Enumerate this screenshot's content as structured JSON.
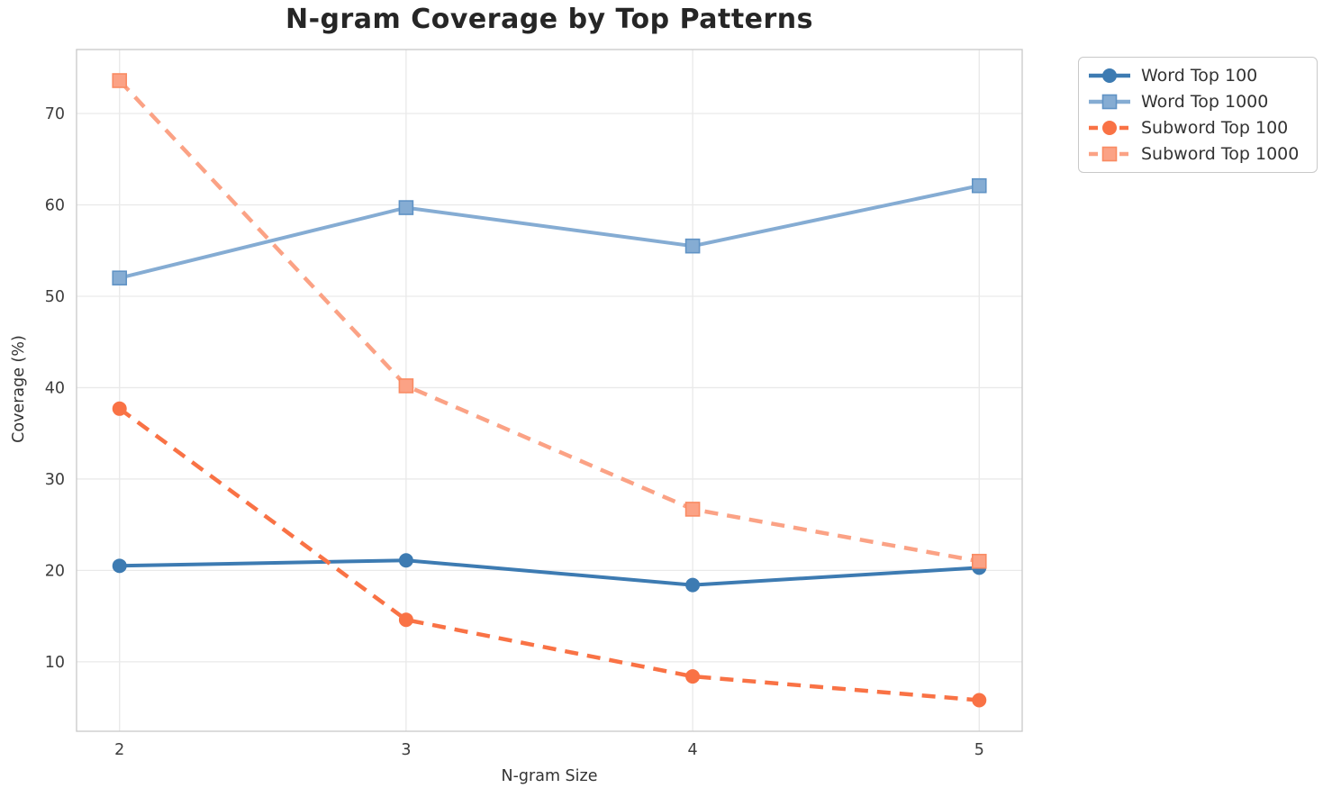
{
  "chart_data": {
    "type": "line",
    "title": "N-gram Coverage by Top Patterns",
    "xlabel": "N-gram Size",
    "ylabel": "Coverage (%)",
    "x": [
      2,
      3,
      4,
      5
    ],
    "xtick_labels": [
      "2",
      "3",
      "4",
      "5"
    ],
    "yticks": [
      10,
      20,
      30,
      40,
      50,
      60,
      70
    ],
    "xlim": [
      1.85,
      5.15
    ],
    "ylim": [
      2.4,
      77.0
    ],
    "grid": true,
    "legend_position": "outside-top-right",
    "series": [
      {
        "name": "Word Top 100",
        "values": [
          20.5,
          21.1,
          18.4,
          20.3
        ],
        "color": "#3D7BB2",
        "edge": "#3D7BB2",
        "marker": "circle",
        "line": "solid"
      },
      {
        "name": "Word Top 1000",
        "values": [
          52.0,
          59.7,
          55.5,
          62.1
        ],
        "color": "#85ACD3",
        "edge": "#6093C5",
        "marker": "square",
        "line": "solid"
      },
      {
        "name": "Subword Top 100",
        "values": [
          37.7,
          14.6,
          8.4,
          5.8
        ],
        "color": "#F97245",
        "edge": "#F97245",
        "marker": "circle",
        "line": "dashed"
      },
      {
        "name": "Subword Top 1000",
        "values": [
          73.6,
          40.2,
          26.7,
          21.0
        ],
        "color": "#FBA285",
        "edge": "#F98B63",
        "marker": "square",
        "line": "dashed"
      }
    ],
    "colors": {
      "grid": "#e9e9e9",
      "spine": "#cccccc",
      "tick_text": "#3d3d3d",
      "title_text": "#262626"
    }
  }
}
